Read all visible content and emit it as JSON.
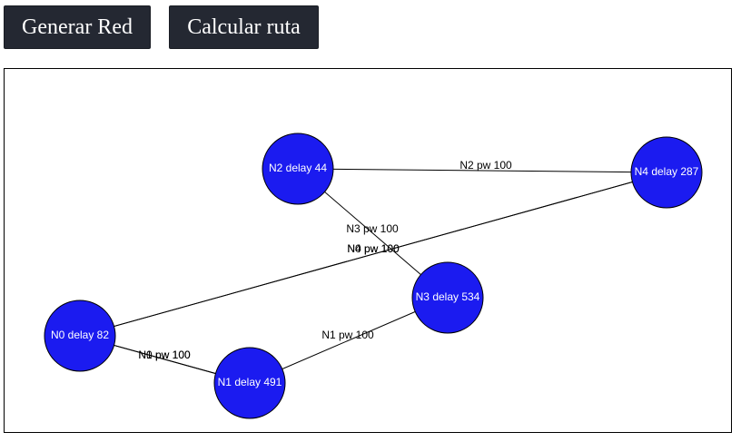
{
  "toolbar": {
    "generate_label": "Generar Red",
    "route_label": "Calcular ruta"
  },
  "graph": {
    "node_color": "#1b1bf0",
    "node_border_color": "#000000",
    "edge_color": "#000000",
    "nodes": [
      {
        "id": "N0",
        "label": "N0 delay 82"
      },
      {
        "id": "N1",
        "label": "N1 delay 491"
      },
      {
        "id": "N2",
        "label": "N2 delay 44"
      },
      {
        "id": "N3",
        "label": "N3 delay 534"
      },
      {
        "id": "N4",
        "label": "N4 delay 287"
      }
    ],
    "edges": [
      {
        "from": "N2",
        "to": "N4",
        "label": "N2 pw 100"
      },
      {
        "from": "N2",
        "to": "N3",
        "label": "N3 pw 100"
      },
      {
        "from": "N0",
        "to": "N4",
        "label": "N0 pw 100"
      },
      {
        "from": "N4",
        "to": "N0",
        "label": "N4 pw 100"
      },
      {
        "from": "N3",
        "to": "N1",
        "label": "N1 pw 100"
      },
      {
        "from": "N0",
        "to": "N1",
        "label": "N0 pw 100"
      },
      {
        "from": "N1",
        "to": "N0",
        "label": "N1 pw 100"
      }
    ]
  }
}
